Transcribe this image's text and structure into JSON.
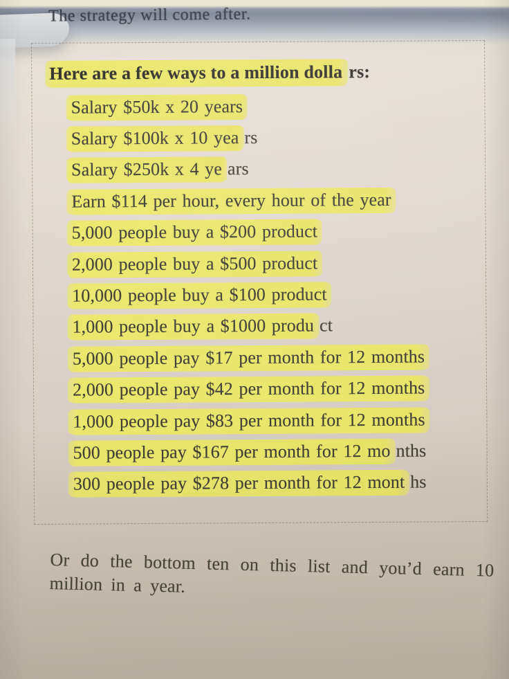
{
  "page": {
    "top_line": "The strategy will come after.",
    "box": {
      "title": {
        "hl": "Here are a few ways to a million dolla",
        "tail": "rs:"
      },
      "items": [
        {
          "hl": "Salary $50k x 20 years",
          "tail": ""
        },
        {
          "hl": "Salary $100k x 10 yea",
          "tail": "rs"
        },
        {
          "hl": "Salary $250k x 4 ye",
          "tail": "ars"
        },
        {
          "hl": "Earn $114 per hour, every hour of the year",
          "tail": ""
        },
        {
          "hl": "5,000 people buy a $200 product",
          "tail": ""
        },
        {
          "hl": "2,000 people buy a $500 product",
          "tail": ""
        },
        {
          "hl": "10,000 people buy a $100 product",
          "tail": ""
        },
        {
          "hl": "1,000 people buy a $1000 produ",
          "tail": "ct"
        },
        {
          "hl": "5,000 people pay $17 per month for 12 months",
          "tail": ""
        },
        {
          "hl": "2,000 people pay $42 per month for 12 months",
          "tail": ""
        },
        {
          "hl": "1,000 people pay $83 per month for 12 months",
          "tail": ""
        },
        {
          "hl": "500 people pay $167 per month for 12 mo",
          "tail": "nths"
        },
        {
          "hl": "300 people pay $278 per month for 12 mont",
          "tail": "hs"
        }
      ]
    },
    "footer_paragraph": "Or do the bottom ten on this list and you’d earn 10 million in a year.",
    "colors": {
      "highlighter_yellow": "#eae66c",
      "paper_light": "#e8e1d8",
      "paper_dark": "#c7beb2",
      "shadow_band": "#7e8593",
      "ink": "#403e35"
    }
  }
}
